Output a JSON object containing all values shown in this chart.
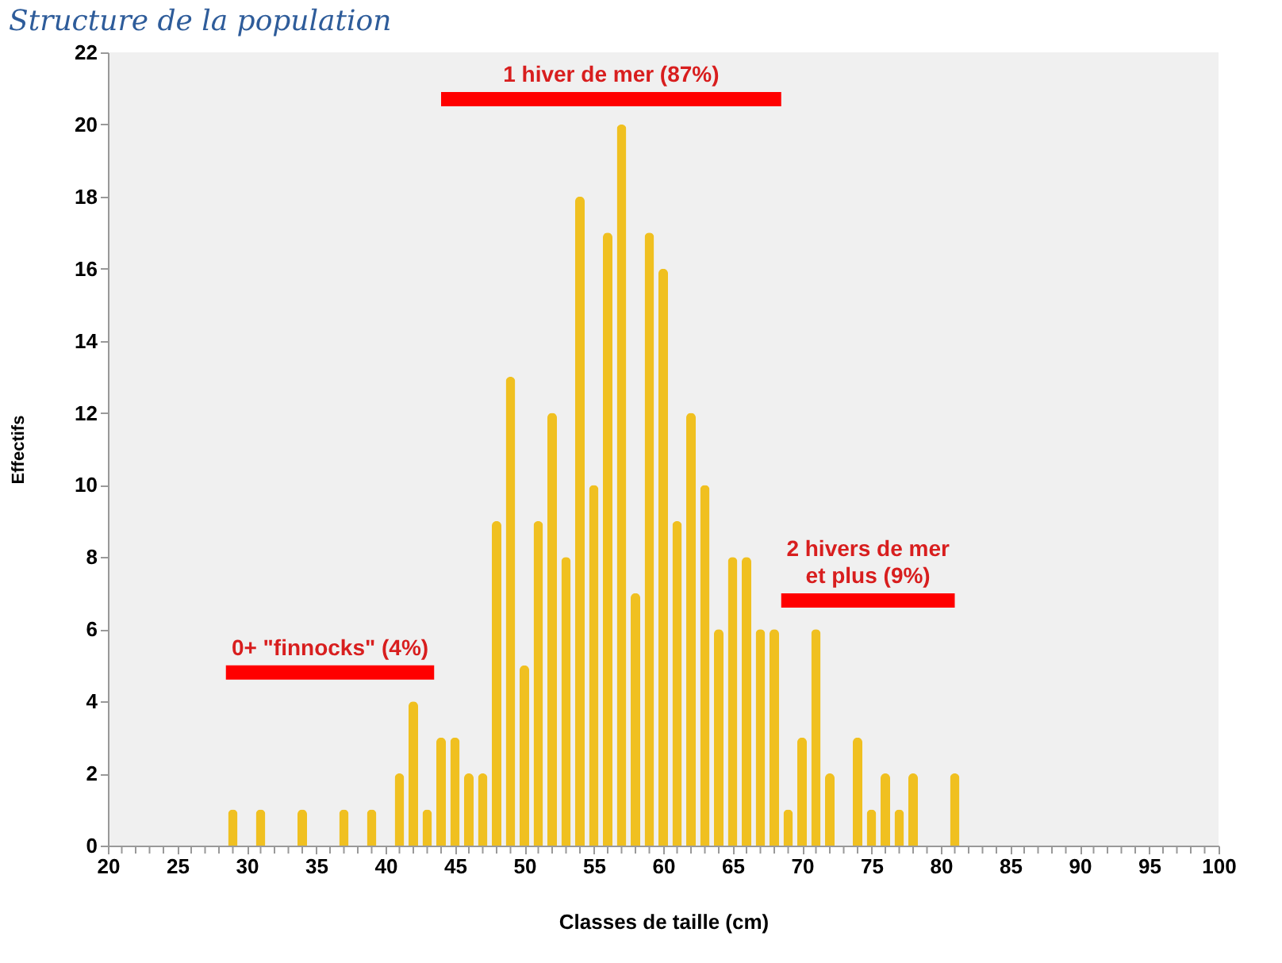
{
  "chart_data": {
    "type": "bar",
    "title": "Structure de la population",
    "xlabel": "Classes de taille (cm)",
    "ylabel": "Effectifs",
    "x": [
      29,
      31,
      34,
      37,
      39,
      41,
      42,
      43,
      44,
      45,
      46,
      47,
      48,
      49,
      50,
      51,
      52,
      53,
      54,
      55,
      56,
      57,
      58,
      59,
      60,
      61,
      62,
      63,
      64,
      65,
      66,
      67,
      68,
      69,
      70,
      71,
      72,
      74,
      75,
      76,
      77,
      78,
      81
    ],
    "series": [
      {
        "color": "#f0c020",
        "values": [
          1,
          1,
          1,
          1,
          1,
          2,
          4,
          1,
          3,
          3,
          2,
          2,
          9,
          13,
          5,
          9,
          12,
          8,
          18,
          10,
          17,
          20,
          7,
          17,
          16,
          9,
          12,
          10,
          6,
          8,
          8,
          6,
          6,
          1,
          3,
          6,
          2,
          3,
          1,
          2,
          1,
          2,
          2
        ]
      },
      {
        "type": "line",
        "name": "0+ \"finnocks\" (4%)",
        "color": "#ff0000",
        "x": [
          28.5,
          43.5
        ],
        "values": [
          4.8,
          4.8
        ]
      },
      {
        "type": "line",
        "name": "1 hiver de mer (87%)",
        "color": "#ff0000",
        "x": [
          44,
          68.5
        ],
        "values": [
          20.7,
          20.7
        ]
      },
      {
        "type": "line",
        "name": "2 hivers de mer\net plus (9%)",
        "color": "#ff0000",
        "x": [
          68.5,
          81
        ],
        "values": [
          6.8,
          6.8
        ]
      }
    ],
    "xlim": [
      20,
      100
    ],
    "xticks": [
      20,
      {
        "value": 21,
        "label": null
      },
      {
        "value": 22,
        "label": null
      },
      {
        "value": 23,
        "label": null
      },
      {
        "value": 24,
        "label": null
      },
      25,
      {
        "value": 26,
        "label": null
      },
      {
        "value": 27,
        "label": null
      },
      {
        "value": 28,
        "label": null
      },
      {
        "value": 29,
        "label": null
      },
      30,
      {
        "value": 31,
        "label": null
      },
      {
        "value": 32,
        "label": null
      },
      {
        "value": 33,
        "label": null
      },
      {
        "value": 34,
        "label": null
      },
      35,
      {
        "value": 36,
        "label": null
      },
      {
        "value": 37,
        "label": null
      },
      {
        "value": 38,
        "label": null
      },
      {
        "value": 39,
        "label": null
      },
      40,
      {
        "value": 41,
        "label": null
      },
      {
        "value": 42,
        "label": null
      },
      {
        "value": 43,
        "label": null
      },
      {
        "value": 44,
        "label": null
      },
      45,
      {
        "value": 46,
        "label": null
      },
      {
        "value": 47,
        "label": null
      },
      {
        "value": 48,
        "label": null
      },
      {
        "value": 49,
        "label": null
      },
      50,
      {
        "value": 51,
        "label": null
      },
      {
        "value": 52,
        "label": null
      },
      {
        "value": 53,
        "label": null
      },
      {
        "value": 54,
        "label": null
      },
      55,
      {
        "value": 56,
        "label": null
      },
      {
        "value": 57,
        "label": null
      },
      {
        "value": 58,
        "label": null
      },
      {
        "value": 59,
        "label": null
      },
      60,
      {
        "value": 61,
        "label": null
      },
      {
        "value": 62,
        "label": null
      },
      {
        "value": 63,
        "label": null
      },
      {
        "value": 64,
        "label": null
      },
      65,
      {
        "value": 66,
        "label": null
      },
      {
        "value": 67,
        "label": null
      },
      {
        "value": 68,
        "label": null
      },
      {
        "value": 69,
        "label": null
      },
      70,
      {
        "value": 71,
        "label": null
      },
      {
        "value": 72,
        "label": null
      },
      {
        "value": 73,
        "label": null
      },
      {
        "value": 74,
        "label": null
      },
      75,
      {
        "value": 76,
        "label": null
      },
      {
        "value": 77,
        "label": null
      },
      {
        "value": 78,
        "label": null
      },
      {
        "value": 79,
        "label": null
      },
      80,
      {
        "value": 81,
        "label": null
      },
      {
        "value": 82,
        "label": null
      },
      {
        "value": 83,
        "label": null
      },
      {
        "value": 84,
        "label": null
      },
      85,
      {
        "value": 86,
        "label": null
      },
      {
        "value": 87,
        "label": null
      },
      {
        "value": 88,
        "label": null
      },
      {
        "value": 89,
        "label": null
      },
      90,
      {
        "value": 91,
        "label": null
      },
      {
        "value": 92,
        "label": null
      },
      {
        "value": 93,
        "label": null
      },
      {
        "value": 94,
        "label": null
      },
      95,
      {
        "value": 96,
        "label": null
      },
      {
        "value": 97,
        "label": null
      },
      {
        "value": 98,
        "label": null
      },
      {
        "value": 99,
        "label": null
      },
      100
    ],
    "ylim": [
      0,
      22
    ],
    "yticks": [
      0,
      2,
      4,
      6,
      8,
      10,
      12,
      14,
      16,
      18,
      20,
      22
    ],
    "grid": false
  }
}
